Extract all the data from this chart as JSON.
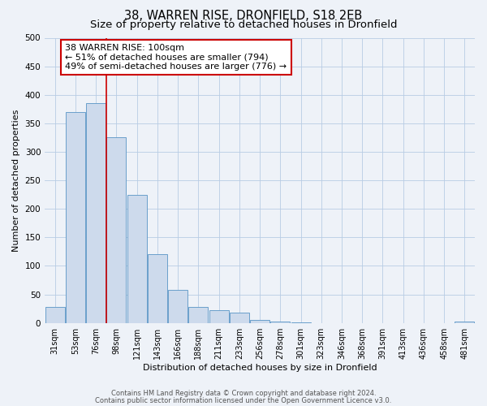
{
  "title": "38, WARREN RISE, DRONFIELD, S18 2EB",
  "subtitle": "Size of property relative to detached houses in Dronfield",
  "xlabel": "Distribution of detached houses by size in Dronfield",
  "ylabel": "Number of detached properties",
  "bar_labels": [
    "31sqm",
    "53sqm",
    "76sqm",
    "98sqm",
    "121sqm",
    "143sqm",
    "166sqm",
    "188sqm",
    "211sqm",
    "233sqm",
    "256sqm",
    "278sqm",
    "301sqm",
    "323sqm",
    "346sqm",
    "368sqm",
    "391sqm",
    "413sqm",
    "436sqm",
    "458sqm",
    "481sqm"
  ],
  "bar_values": [
    28,
    370,
    385,
    325,
    225,
    120,
    58,
    28,
    23,
    18,
    5,
    2,
    1,
    0,
    0,
    0,
    0,
    0,
    0,
    0,
    2
  ],
  "bar_color": "#cddaec",
  "bar_edge_color": "#6a9fcb",
  "vline_color": "#cc0000",
  "vline_pos": 2.5,
  "annotation_box_text": "38 WARREN RISE: 100sqm\n← 51% of detached houses are smaller (794)\n49% of semi-detached houses are larger (776) →",
  "annotation_box_facecolor": "#ffffff",
  "annotation_box_edgecolor": "#cc0000",
  "ylim": [
    0,
    500
  ],
  "yticks": [
    0,
    50,
    100,
    150,
    200,
    250,
    300,
    350,
    400,
    450,
    500
  ],
  "grid_color": "#b8cce4",
  "bg_color": "#eef2f8",
  "footer_line1": "Contains HM Land Registry data © Crown copyright and database right 2024.",
  "footer_line2": "Contains public sector information licensed under the Open Government Licence v3.0.",
  "title_fontsize": 10.5,
  "subtitle_fontsize": 9.5,
  "tick_fontsize": 7,
  "label_fontsize": 8,
  "annotation_fontsize": 8,
  "footer_fontsize": 6
}
